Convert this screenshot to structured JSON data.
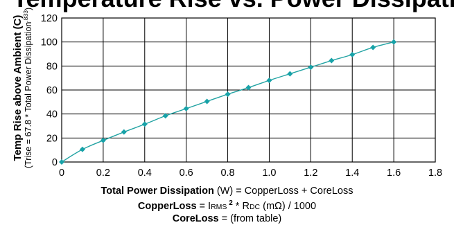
{
  "top_title": "Temperature Rise vs. Power Dissipation",
  "colors": {
    "series": "#22a3a3",
    "marker": "#17a2a8",
    "grid": "#000000"
  },
  "chart_data": {
    "type": "line",
    "x": [
      0,
      0.1,
      0.2,
      0.3,
      0.4,
      0.5,
      0.6,
      0.7,
      0.8,
      0.9,
      1.0,
      1.1,
      1.2,
      1.3,
      1.4,
      1.5,
      1.6
    ],
    "series": [
      {
        "values": [
          0,
          10.5,
          18,
          25,
          31.5,
          38.5,
          44.5,
          50.5,
          56.5,
          62,
          68,
          73.5,
          79,
          84.5,
          89.5,
          95.5,
          100
        ]
      }
    ],
    "xlim": [
      0,
      1.8
    ],
    "ylim": [
      0,
      120
    ],
    "xticks": [
      "0",
      "0.2",
      "0.4",
      "0.6",
      "0.8",
      "1.0",
      "1.2",
      "1.4",
      "1.6",
      "1.8"
    ],
    "yticks": [
      "0",
      "20",
      "40",
      "60",
      "80",
      "100",
      "120"
    ],
    "ylabel": "Temp Rise above Ambient (C)",
    "ylabel_sub_prefix": "(Trise = 67.8 * Total Power Dissipation",
    "ylabel_sub_sup": ".833",
    "ylabel_sub_suffix": ")",
    "grid": true
  },
  "formulas": {
    "line1_bold": "Total Power Dissipation",
    "line1_rest": " (W) = CopperLoss + CoreLoss",
    "line2_bold": "CopperLoss",
    "line2_eq": " = I",
    "line2_rms": "RMS",
    "line2_pow": " 2",
    "line2_mul": " * R",
    "line2_dc": "DC",
    "line2_rest": " (mΩ) / 1000",
    "line3_bold": "CoreLoss",
    "line3_rest": " = (from table)"
  }
}
